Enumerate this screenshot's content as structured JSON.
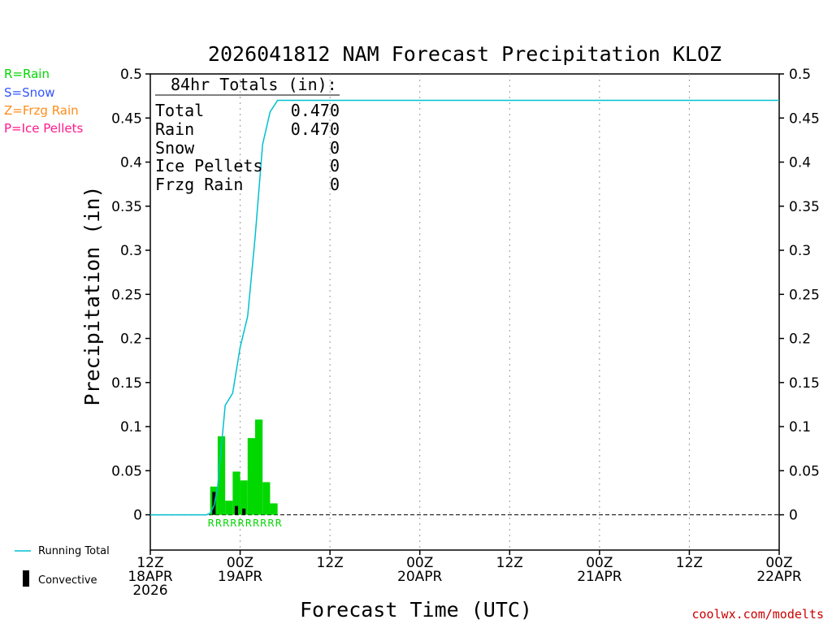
{
  "colors": {
    "rain": "#00d800",
    "snow": "#3355ff",
    "frzg_rain": "#ff8c1a",
    "ice_pellets": "#ff1a8c",
    "running_total": "#00c0d0",
    "convective": "#000000",
    "credit": "#cc0000"
  },
  "chart_data": {
    "type": "bar",
    "title": "2026041812 NAM Forecast Precipitation KLOZ",
    "xlabel": "Forecast Time (UTC)",
    "ylabel": "Precipitation (in)",
    "ylim": [
      -0.04,
      0.5
    ],
    "xlim_hours": [
      0,
      84
    ],
    "grid": "vertical dotted",
    "y_ticks": [
      0,
      0.05,
      0.1,
      0.15,
      0.2,
      0.25,
      0.3,
      0.35,
      0.4,
      0.45,
      0.5
    ],
    "y_tick_labels": [
      "0",
      "0.05",
      "0.1",
      "0.15",
      "0.2",
      "0.25",
      "0.3",
      "0.35",
      "0.4",
      "0.45",
      "0.5"
    ],
    "x_ticks": [
      {
        "hour": 0,
        "line1": "12Z",
        "line2": "18APR",
        "line3": "2026"
      },
      {
        "hour": 12,
        "line1": "00Z",
        "line2": "19APR",
        "line3": ""
      },
      {
        "hour": 24,
        "line1": "12Z",
        "line2": "",
        "line3": ""
      },
      {
        "hour": 36,
        "line1": "00Z",
        "line2": "20APR",
        "line3": ""
      },
      {
        "hour": 48,
        "line1": "12Z",
        "line2": "",
        "line3": ""
      },
      {
        "hour": 60,
        "line1": "00Z",
        "line2": "21APR",
        "line3": ""
      },
      {
        "hour": 72,
        "line1": "12Z",
        "line2": "",
        "line3": ""
      },
      {
        "hour": 84,
        "line1": "00Z",
        "line2": "22APR",
        "line3": ""
      }
    ],
    "series": [
      {
        "name": "Hourly Rain",
        "kind": "bar",
        "hours": [
          9,
          10,
          11,
          12,
          13,
          14,
          15,
          16,
          17
        ],
        "values": [
          0.032,
          0.089,
          0.016,
          0.049,
          0.039,
          0.087,
          0.108,
          0.037,
          0.013
        ]
      },
      {
        "name": "Convective",
        "kind": "bar",
        "hours": [
          9,
          12,
          13
        ],
        "values": [
          0.026,
          0.01,
          0.007
        ]
      },
      {
        "name": "Running Total",
        "kind": "line",
        "hours": [
          0,
          7.5,
          8,
          8.5,
          9,
          10,
          11,
          12,
          13,
          14,
          15,
          16,
          17,
          84
        ],
        "values": [
          0,
          0,
          0.002,
          0.01,
          0.032,
          0.124,
          0.138,
          0.19,
          0.225,
          0.315,
          0.42,
          0.457,
          0.47,
          0.47
        ]
      }
    ],
    "precip_type_hours": [
      8,
      9,
      10,
      11,
      12,
      13,
      14,
      15,
      16,
      17
    ],
    "precip_type_symbol": "R"
  },
  "totals": {
    "heading": "84hr Totals (in):",
    "rows": [
      {
        "label": "Total",
        "value": "0.470"
      },
      {
        "label": "Rain",
        "value": "0.470"
      },
      {
        "label": "Snow",
        "value": "0"
      },
      {
        "label": "Ice Pellets",
        "value": "0"
      },
      {
        "label": "Frzg Rain",
        "value": "0"
      }
    ]
  },
  "type_legend": {
    "rain": "R=Rain",
    "snow": "S=Snow",
    "frzg_rain": "Z=Frzg Rain",
    "ice_pellets": "P=Ice Pellets"
  },
  "series_legend": {
    "running_total": "Running Total",
    "convective": "Convective"
  },
  "credit": "coolwx.com/modelts"
}
